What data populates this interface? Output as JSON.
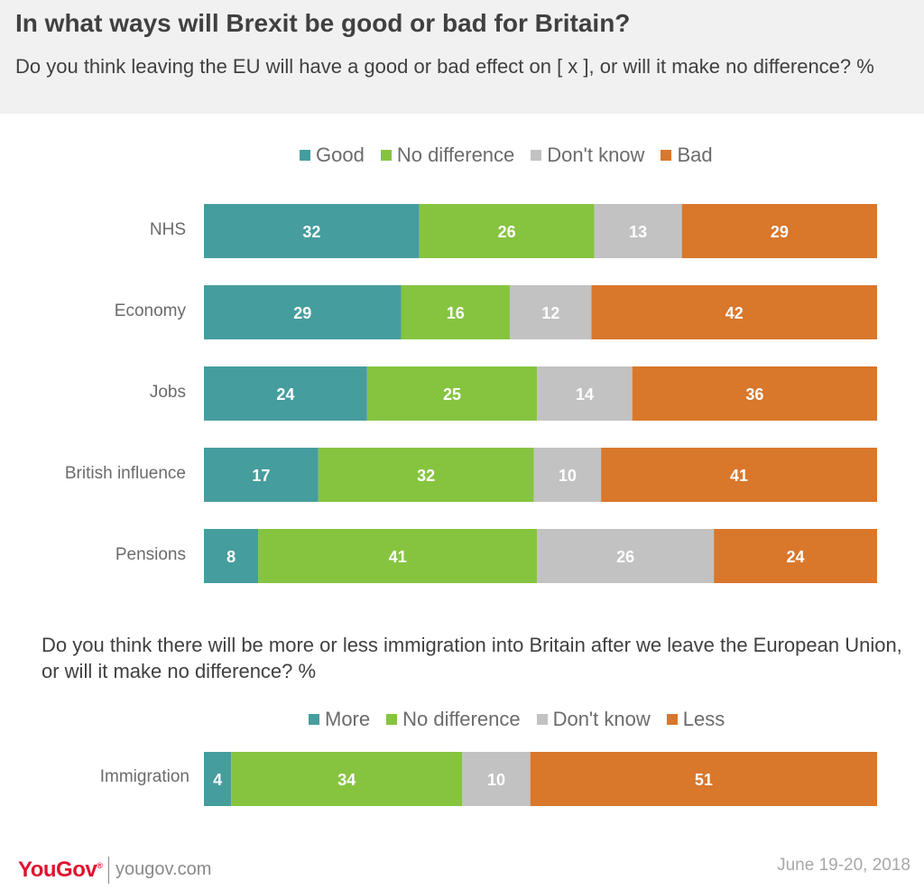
{
  "header": {
    "title": "In what ways will Brexit be good or bad for Britain?",
    "subtitle": "Do you think leaving the EU will have a good or bad effect on [ x ], or will it make no difference? %"
  },
  "colors": {
    "good": "#469d9e",
    "no_difference": "#86c440",
    "dont_know": "#c2c2c2",
    "bad": "#d9772b"
  },
  "chart_data": [
    {
      "type": "bar",
      "orientation": "horizontal",
      "stacked": true,
      "categories": [
        "NHS",
        "Economy",
        "Jobs",
        "British influence",
        "Pensions"
      ],
      "series": [
        {
          "name": "Good",
          "values": [
            32,
            29,
            24,
            17,
            8
          ]
        },
        {
          "name": "No difference",
          "values": [
            26,
            16,
            25,
            32,
            41
          ]
        },
        {
          "name": "Don't know",
          "values": [
            13,
            12,
            14,
            10,
            26
          ]
        },
        {
          "name": "Bad",
          "values": [
            29,
            42,
            36,
            41,
            24
          ]
        }
      ],
      "legend_position": "top",
      "grid": false
    },
    {
      "type": "bar",
      "orientation": "horizontal",
      "stacked": true,
      "title": "Do you think there will be more or less immigration into Britain after we leave the European Union, or will it make no difference? %",
      "categories": [
        "Immigration"
      ],
      "series": [
        {
          "name": "More",
          "values": [
            4
          ]
        },
        {
          "name": "No difference",
          "values": [
            34
          ]
        },
        {
          "name": "Don't know",
          "values": [
            10
          ]
        },
        {
          "name": "Less",
          "values": [
            51
          ]
        }
      ],
      "legend_position": "top",
      "grid": false
    }
  ],
  "footer": {
    "logo": "YouGov",
    "logo_mark": "®",
    "url": "yougov.com",
    "date": "June 19-20, 2018"
  }
}
